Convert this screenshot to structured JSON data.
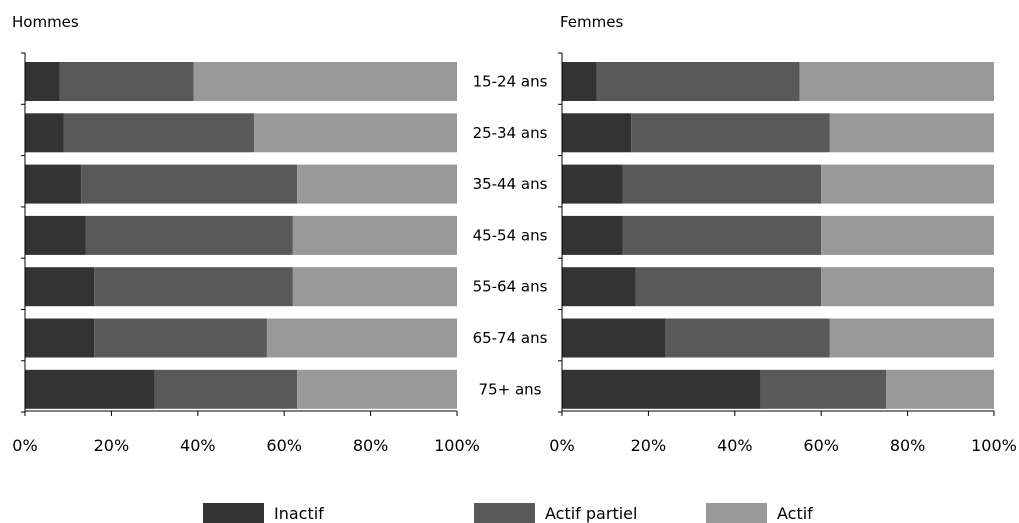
{
  "chart_data": [
    {
      "type": "bar",
      "orientation": "horizontal",
      "stacked": true,
      "percent": true,
      "title": "Hommes",
      "categories": [
        "15-24 ans",
        "25-34 ans",
        "35-44 ans",
        "45-54 ans",
        "55-64 ans",
        "65-74 ans",
        "75+ ans"
      ],
      "series": [
        {
          "name": "Inactif",
          "values": [
            8,
            9,
            13,
            14,
            16,
            16,
            30
          ]
        },
        {
          "name": "Actif partiel",
          "values": [
            31,
            44,
            50,
            48,
            46,
            40,
            33
          ]
        },
        {
          "name": "Actif",
          "values": [
            61,
            47,
            37,
            38,
            38,
            44,
            37
          ]
        }
      ],
      "xlim": [
        0,
        100
      ],
      "xticks": [
        "0%",
        "20%",
        "40%",
        "60%",
        "80%",
        "100%"
      ],
      "grid": false
    },
    {
      "type": "bar",
      "orientation": "horizontal",
      "stacked": true,
      "percent": true,
      "title": "Femmes",
      "categories": [
        "15-24 ans",
        "25-34 ans",
        "35-44 ans",
        "45-54 ans",
        "55-64 ans",
        "65-74 ans",
        "75+ ans"
      ],
      "series": [
        {
          "name": "Inactif",
          "values": [
            8,
            16,
            14,
            14,
            17,
            24,
            46
          ]
        },
        {
          "name": "Actif partiel",
          "values": [
            47,
            46,
            46,
            46,
            43,
            38,
            29
          ]
        },
        {
          "name": "Actif",
          "values": [
            45,
            38,
            40,
            40,
            40,
            38,
            25
          ]
        }
      ],
      "xlim": [
        0,
        100
      ],
      "xticks": [
        "0%",
        "20%",
        "40%",
        "60%",
        "80%",
        "100%"
      ],
      "grid": false
    }
  ],
  "legend": {
    "placement": "bottom",
    "items": [
      {
        "label": "Inactif",
        "color": "#333333"
      },
      {
        "label": "Actif partiel",
        "color": "#595959"
      },
      {
        "label": "Actif",
        "color": "#999999"
      }
    ]
  },
  "colors": {
    "Inactif": "#333333",
    "Actif partiel": "#595959",
    "Actif": "#999999"
  }
}
